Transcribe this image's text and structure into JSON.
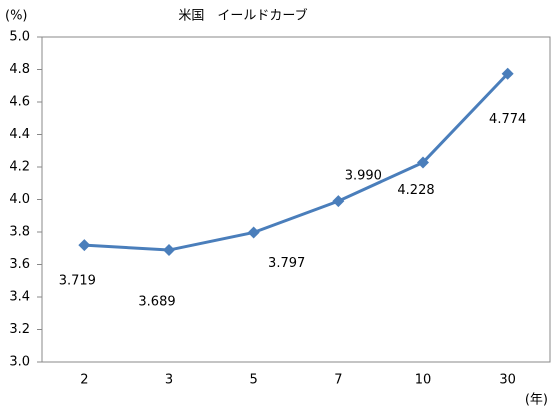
{
  "chart_data": {
    "type": "line",
    "title": "米国　イールドカーブ",
    "y_label": "(%)",
    "x_label": "(年)",
    "categories": [
      "2",
      "3",
      "5",
      "7",
      "10",
      "30"
    ],
    "series": [
      {
        "name": "米国",
        "color": "#4a7ebb",
        "values": [
          3.719,
          3.689,
          3.797,
          3.99,
          4.228,
          4.774
        ],
        "value_labels": [
          "3.719",
          "3.689",
          "3.797",
          "3.990",
          "4.228",
          "4.774"
        ]
      }
    ],
    "ylim": [
      3.0,
      5.0
    ],
    "yticks": [
      {
        "value": 3.0,
        "label": "3.0"
      },
      {
        "value": 3.2,
        "label": "3.2"
      },
      {
        "value": 3.4,
        "label": "3.4"
      },
      {
        "value": 3.6,
        "label": "3.6"
      },
      {
        "value": 3.8,
        "label": "3.8"
      },
      {
        "value": 4.0,
        "label": "4.0"
      },
      {
        "value": 4.2,
        "label": "4.2"
      },
      {
        "value": 4.4,
        "label": "4.4"
      },
      {
        "value": 4.6,
        "label": "4.6"
      },
      {
        "value": 4.8,
        "label": "4.8"
      },
      {
        "value": 5.0,
        "label": "5.0"
      }
    ],
    "grid": false,
    "marker": "diamond"
  }
}
